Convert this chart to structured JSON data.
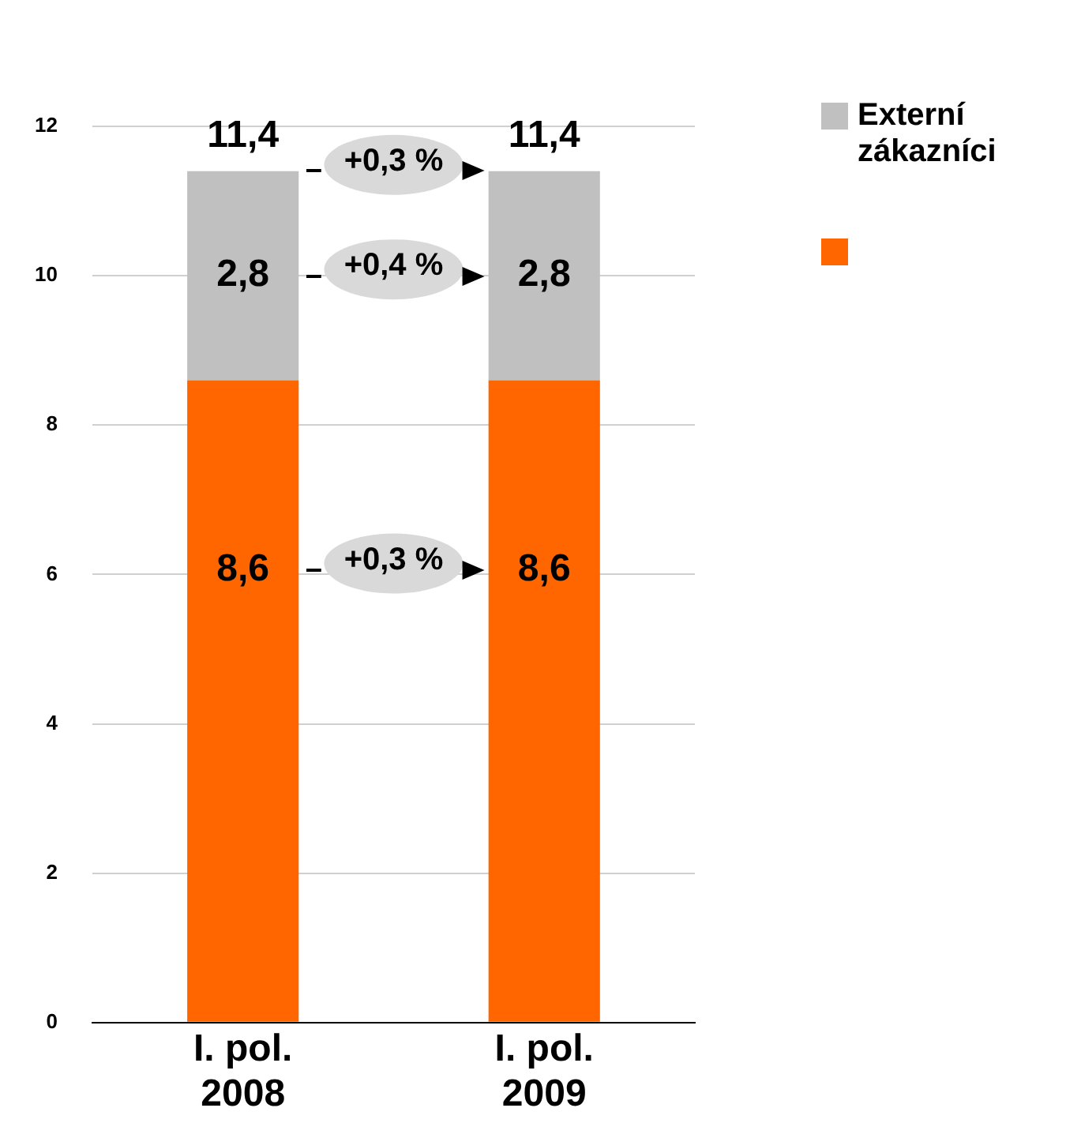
{
  "chart_data": {
    "type": "bar",
    "stacked": true,
    "categories": [
      "I. pol. 2008",
      "I. pol. 2009"
    ],
    "series": [
      {
        "color": "#ff6600",
        "values": [
          8.6,
          8.6
        ],
        "value_labels": [
          "8,6",
          "8,6"
        ]
      },
      {
        "name": "Externí zákazníci",
        "color": "#c0c0c0",
        "values": [
          2.8,
          2.8
        ],
        "value_labels": [
          "2,8",
          "2,8"
        ]
      }
    ],
    "totals": [
      "11,4",
      "11,4"
    ],
    "annotations": [
      "+0,3 %",
      "+0,4 %",
      "+0,3 %"
    ],
    "ylim": [
      0,
      12
    ],
    "yticks": [
      0,
      2,
      4,
      6,
      8,
      10,
      12
    ],
    "grid": "y",
    "legend": "top right"
  }
}
